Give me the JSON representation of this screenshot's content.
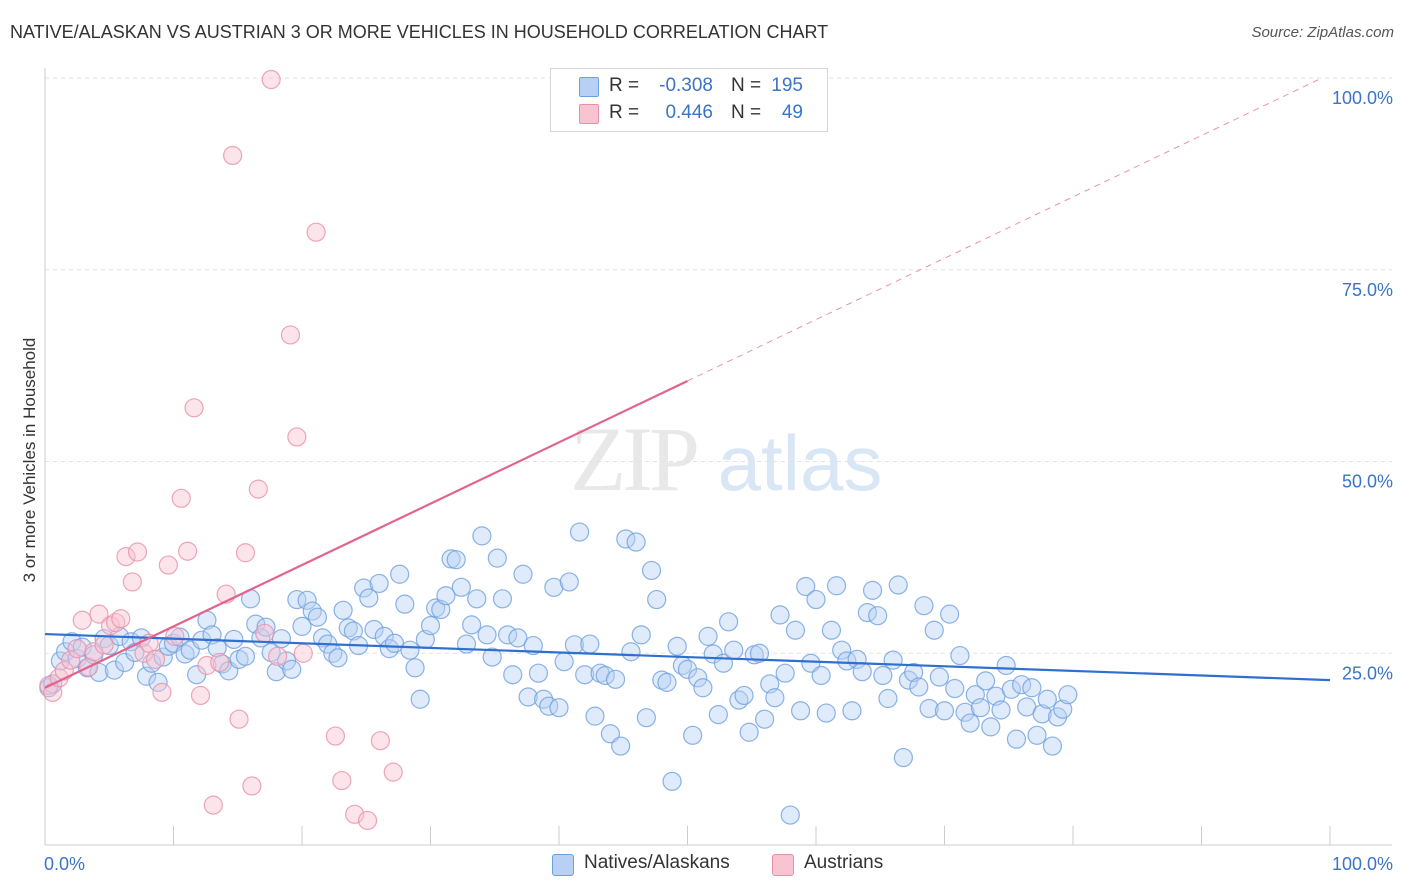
{
  "title": "NATIVE/ALASKAN VS AUSTRIAN 3 OR MORE VEHICLES IN HOUSEHOLD CORRELATION CHART",
  "source": "Source: ZipAtlas.com",
  "watermark": {
    "zip": "ZIP",
    "atlas": "atlas"
  },
  "legend": {
    "items": [
      {
        "r_label": "R =",
        "r_value": "-0.308",
        "n_label": "N =",
        "n_value": "195",
        "color": "#6ea0e0",
        "fill": "#b8d0f4"
      },
      {
        "r_label": "R =",
        "r_value": "0.446",
        "n_label": "N =",
        "n_value": "49",
        "color": "#e890a8",
        "fill": "#f8c4d2"
      }
    ]
  },
  "bottom_legend": {
    "natives": "Natives/Alaskans",
    "austrians": "Austrians"
  },
  "chart_data": {
    "type": "scatter",
    "title": "NATIVE/ALASKAN VS AUSTRIAN 3 OR MORE VEHICLES IN HOUSEHOLD CORRELATION CHART",
    "xlabel": "",
    "ylabel": "3 or more Vehicles in Household",
    "xlim": [
      0,
      100
    ],
    "ylim": [
      0,
      100
    ],
    "x_tick_labels": [
      "0.0%",
      "100.0%"
    ],
    "y_tick_labels": [
      "25.0%",
      "50.0%",
      "75.0%",
      "100.0%"
    ],
    "y_ticks": [
      25,
      50,
      75,
      100
    ],
    "grid": true,
    "legend_position": "top-center",
    "series": [
      {
        "name": "Natives/Alaskans",
        "color": "#6ea0e0",
        "fill": "#b8d0f4",
        "trend": {
          "x": [
            0,
            100
          ],
          "y": [
            27.5,
            21.5
          ],
          "dashed_from": null
        },
        "points": [
          [
            0.3,
            20.5
          ],
          [
            0.6,
            21.0
          ],
          [
            1.2,
            24.0
          ],
          [
            1.6,
            25.2
          ],
          [
            2.1,
            26.5
          ],
          [
            2.5,
            24.3
          ],
          [
            2.9,
            25.8
          ],
          [
            3.3,
            23.1
          ],
          [
            3.8,
            24.8
          ],
          [
            4.2,
            22.5
          ],
          [
            4.6,
            26.9
          ],
          [
            5.0,
            26.0
          ],
          [
            5.4,
            22.8
          ],
          [
            5.8,
            27.2
          ],
          [
            6.2,
            23.8
          ],
          [
            6.7,
            26.5
          ],
          [
            7.0,
            25.1
          ],
          [
            7.5,
            27.0
          ],
          [
            7.9,
            22.0
          ],
          [
            8.3,
            23.7
          ],
          [
            8.8,
            21.2
          ],
          [
            9.2,
            24.5
          ],
          [
            9.6,
            25.9
          ],
          [
            10.0,
            26.3
          ],
          [
            10.5,
            27.1
          ],
          [
            10.9,
            24.9
          ],
          [
            11.3,
            25.4
          ],
          [
            11.8,
            22.2
          ],
          [
            12.2,
            26.7
          ],
          [
            12.6,
            29.3
          ],
          [
            13.0,
            27.4
          ],
          [
            13.4,
            25.7
          ],
          [
            13.8,
            23.6
          ],
          [
            14.3,
            22.7
          ],
          [
            14.7,
            26.8
          ],
          [
            15.1,
            24.2
          ],
          [
            15.6,
            24.6
          ],
          [
            16.0,
            32.1
          ],
          [
            16.4,
            28.8
          ],
          [
            16.8,
            27.0
          ],
          [
            17.2,
            28.4
          ],
          [
            17.6,
            25.1
          ],
          [
            18.0,
            22.6
          ],
          [
            18.4,
            26.9
          ],
          [
            18.8,
            24.0
          ],
          [
            19.2,
            22.9
          ],
          [
            19.6,
            32.0
          ],
          [
            20.0,
            28.5
          ],
          [
            20.4,
            31.9
          ],
          [
            20.8,
            30.5
          ],
          [
            21.2,
            29.7
          ],
          [
            21.6,
            27.0
          ],
          [
            22.0,
            26.2
          ],
          [
            22.4,
            25.0
          ],
          [
            22.8,
            24.4
          ],
          [
            23.2,
            30.6
          ],
          [
            23.6,
            28.3
          ],
          [
            24.0,
            27.9
          ],
          [
            24.4,
            26.0
          ],
          [
            24.8,
            33.5
          ],
          [
            25.2,
            32.2
          ],
          [
            25.6,
            28.1
          ],
          [
            26.0,
            34.1
          ],
          [
            26.4,
            27.2
          ],
          [
            26.8,
            25.6
          ],
          [
            27.2,
            26.3
          ],
          [
            27.6,
            35.3
          ],
          [
            28.0,
            31.4
          ],
          [
            28.4,
            25.4
          ],
          [
            28.8,
            23.1
          ],
          [
            29.2,
            19.0
          ],
          [
            29.6,
            26.8
          ],
          [
            30.0,
            28.6
          ],
          [
            30.4,
            30.9
          ],
          [
            30.8,
            30.7
          ],
          [
            31.2,
            32.5
          ],
          [
            31.6,
            37.3
          ],
          [
            32.0,
            37.2
          ],
          [
            32.4,
            33.6
          ],
          [
            32.8,
            26.2
          ],
          [
            33.2,
            28.7
          ],
          [
            33.6,
            32.1
          ],
          [
            34.0,
            40.3
          ],
          [
            34.4,
            27.4
          ],
          [
            34.8,
            24.5
          ],
          [
            35.2,
            37.4
          ],
          [
            35.6,
            32.1
          ],
          [
            36.0,
            27.4
          ],
          [
            36.4,
            22.2
          ],
          [
            36.8,
            27.0
          ],
          [
            37.2,
            35.3
          ],
          [
            37.6,
            19.3
          ],
          [
            38.0,
            26.0
          ],
          [
            38.4,
            22.4
          ],
          [
            38.8,
            19.0
          ],
          [
            39.2,
            18.1
          ],
          [
            39.6,
            33.6
          ],
          [
            40.0,
            17.9
          ],
          [
            40.4,
            23.9
          ],
          [
            40.8,
            34.3
          ],
          [
            41.2,
            26.1
          ],
          [
            41.6,
            40.8
          ],
          [
            42.0,
            22.2
          ],
          [
            42.4,
            26.2
          ],
          [
            42.8,
            16.8
          ],
          [
            43.2,
            22.4
          ],
          [
            43.6,
            22.1
          ],
          [
            44.0,
            14.5
          ],
          [
            44.4,
            21.6
          ],
          [
            44.8,
            12.9
          ],
          [
            45.2,
            39.9
          ],
          [
            45.6,
            25.2
          ],
          [
            46.0,
            39.5
          ],
          [
            46.4,
            27.4
          ],
          [
            46.8,
            16.6
          ],
          [
            47.2,
            35.8
          ],
          [
            47.6,
            32.0
          ],
          [
            48.0,
            21.5
          ],
          [
            48.4,
            21.2
          ],
          [
            48.8,
            8.3
          ],
          [
            49.2,
            25.9
          ],
          [
            49.6,
            23.4
          ],
          [
            50.0,
            22.9
          ],
          [
            50.4,
            14.3
          ],
          [
            50.8,
            21.8
          ],
          [
            51.2,
            20.5
          ],
          [
            51.6,
            27.2
          ],
          [
            52.0,
            24.9
          ],
          [
            52.4,
            17.0
          ],
          [
            52.8,
            23.7
          ],
          [
            53.2,
            29.1
          ],
          [
            53.6,
            25.4
          ],
          [
            54.0,
            18.9
          ],
          [
            54.4,
            19.5
          ],
          [
            54.8,
            14.7
          ],
          [
            55.2,
            24.8
          ],
          [
            55.6,
            25.0
          ],
          [
            56.0,
            16.4
          ],
          [
            56.4,
            21.0
          ],
          [
            56.8,
            19.2
          ],
          [
            57.2,
            30.0
          ],
          [
            57.6,
            22.4
          ],
          [
            58.0,
            3.9
          ],
          [
            58.4,
            28.0
          ],
          [
            58.8,
            17.5
          ],
          [
            59.2,
            33.7
          ],
          [
            59.6,
            23.7
          ],
          [
            60.0,
            32.0
          ],
          [
            60.4,
            22.1
          ],
          [
            60.8,
            17.2
          ],
          [
            61.2,
            28.0
          ],
          [
            61.6,
            33.8
          ],
          [
            62.0,
            25.4
          ],
          [
            62.4,
            24.0
          ],
          [
            62.8,
            17.5
          ],
          [
            63.2,
            24.2
          ],
          [
            63.6,
            22.6
          ],
          [
            64.0,
            30.3
          ],
          [
            64.4,
            33.2
          ],
          [
            64.8,
            29.9
          ],
          [
            65.2,
            22.1
          ],
          [
            65.6,
            19.1
          ],
          [
            66.0,
            24.1
          ],
          [
            66.4,
            33.9
          ],
          [
            66.8,
            11.4
          ],
          [
            67.2,
            21.5
          ],
          [
            67.6,
            22.5
          ],
          [
            68.0,
            20.6
          ],
          [
            68.4,
            31.2
          ],
          [
            68.8,
            17.8
          ],
          [
            69.2,
            28.0
          ],
          [
            69.6,
            21.9
          ],
          [
            70.0,
            17.5
          ],
          [
            70.4,
            30.1
          ],
          [
            70.8,
            20.4
          ],
          [
            71.2,
            24.7
          ],
          [
            71.6,
            17.3
          ],
          [
            72.0,
            15.9
          ],
          [
            72.4,
            19.6
          ],
          [
            72.8,
            17.9
          ],
          [
            73.2,
            21.4
          ],
          [
            73.6,
            15.4
          ],
          [
            74.0,
            19.4
          ],
          [
            74.4,
            17.6
          ],
          [
            74.8,
            23.4
          ],
          [
            75.2,
            20.3
          ],
          [
            75.6,
            13.8
          ],
          [
            76.0,
            20.9
          ],
          [
            76.4,
            18.0
          ],
          [
            76.8,
            20.5
          ],
          [
            77.2,
            14.3
          ],
          [
            77.6,
            17.1
          ],
          [
            78.0,
            19.0
          ],
          [
            78.4,
            12.9
          ],
          [
            78.8,
            16.7
          ],
          [
            79.2,
            17.7
          ],
          [
            79.6,
            19.6
          ]
        ]
      },
      {
        "name": "Austrians",
        "color": "#e890a8",
        "fill": "#f8c4d2",
        "trend": {
          "x": [
            0,
            100
          ],
          "y": [
            20.5,
            100.5
          ],
          "dashed_from": 50
        },
        "points": [
          [
            0.3,
            20.8
          ],
          [
            0.6,
            19.9
          ],
          [
            1.1,
            21.8
          ],
          [
            1.5,
            22.7
          ],
          [
            2.0,
            24.1
          ],
          [
            2.5,
            25.6
          ],
          [
            2.9,
            29.3
          ],
          [
            3.4,
            23.2
          ],
          [
            3.8,
            25.2
          ],
          [
            4.2,
            30.1
          ],
          [
            4.6,
            26.1
          ],
          [
            5.1,
            28.6
          ],
          [
            5.5,
            29.0
          ],
          [
            5.9,
            29.5
          ],
          [
            6.3,
            37.6
          ],
          [
            6.8,
            34.3
          ],
          [
            7.2,
            38.2
          ],
          [
            7.7,
            25.0
          ],
          [
            8.1,
            26.3
          ],
          [
            8.6,
            24.2
          ],
          [
            9.1,
            19.9
          ],
          [
            9.6,
            36.5
          ],
          [
            10.1,
            27.2
          ],
          [
            10.6,
            45.2
          ],
          [
            11.1,
            38.3
          ],
          [
            11.6,
            57.0
          ],
          [
            12.1,
            19.5
          ],
          [
            12.6,
            23.4
          ],
          [
            13.1,
            5.2
          ],
          [
            13.6,
            23.8
          ],
          [
            14.1,
            32.7
          ],
          [
            14.6,
            89.9
          ],
          [
            15.1,
            16.4
          ],
          [
            15.6,
            38.1
          ],
          [
            16.1,
            7.7
          ],
          [
            16.6,
            46.4
          ],
          [
            17.1,
            27.6
          ],
          [
            17.6,
            99.8
          ],
          [
            18.1,
            24.6
          ],
          [
            19.1,
            66.5
          ],
          [
            19.6,
            53.2
          ],
          [
            20.1,
            25.0
          ],
          [
            21.1,
            79.9
          ],
          [
            22.6,
            14.2
          ],
          [
            23.1,
            8.4
          ],
          [
            24.1,
            4.0
          ],
          [
            25.1,
            3.2
          ],
          [
            26.1,
            13.6
          ],
          [
            27.1,
            9.5
          ]
        ]
      }
    ]
  }
}
